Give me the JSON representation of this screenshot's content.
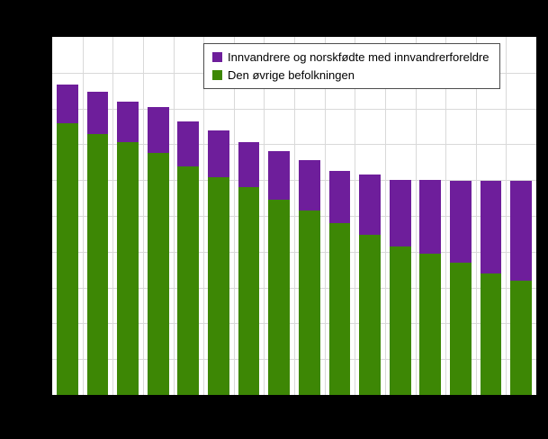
{
  "chart_data": {
    "type": "bar",
    "stacked": true,
    "title": "",
    "xlabel": "",
    "ylabel": "",
    "ylim": [
      0,
      100
    ],
    "grid": true,
    "legend_position": "top-center",
    "x_tick_labels_visible": false,
    "categories": [
      "1",
      "2",
      "3",
      "4",
      "5",
      "6",
      "7",
      "8",
      "9",
      "10",
      "11",
      "12",
      "13",
      "14",
      "15",
      "16"
    ],
    "series": [
      {
        "name": "Innvandrere og norskfødte med innvandrerforeldre",
        "color": "#6e1e9b",
        "values": [
          11.0,
          11.9,
          11.4,
          12.7,
          12.4,
          13.0,
          12.7,
          13.7,
          14.2,
          14.5,
          16.8,
          18.6,
          20.7,
          22.9,
          26.0,
          28.0
        ]
      },
      {
        "name": "Den øvrige befolkningen",
        "color": "#3d8705",
        "values": [
          75.8,
          72.8,
          70.5,
          67.7,
          63.9,
          60.8,
          58.0,
          54.5,
          51.4,
          48.1,
          44.8,
          41.5,
          39.4,
          36.9,
          33.8,
          31.8
        ]
      }
    ]
  },
  "legend": {
    "items": [
      {
        "label": "Innvandrere og norskfødte med innvandrerforeldre",
        "color": "#6e1e9b"
      },
      {
        "label": "Den øvrige befolkningen",
        "color": "#3d8705"
      }
    ]
  },
  "colors": {
    "background": "#000000",
    "plot_background": "#ffffff",
    "grid": "#d9d9d9",
    "purple": "#6e1e9b",
    "green": "#3d8705"
  }
}
